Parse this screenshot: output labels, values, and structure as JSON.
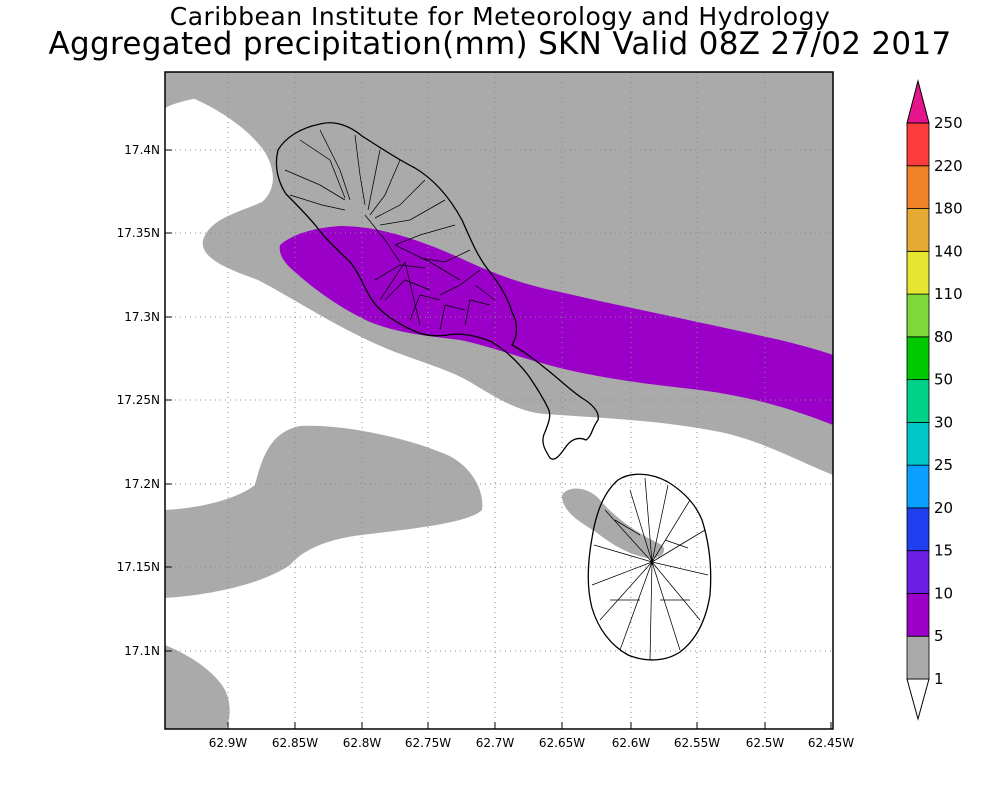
{
  "header": {
    "title_line1": "Caribbean Institute for Meteorology and Hydrology",
    "title_line2": "Aggregated precipitation(mm) SKN Valid 08Z 27/02 2017"
  },
  "map": {
    "lon_range": [
      -62.95,
      -62.45
    ],
    "lat_range": [
      17.05,
      17.45
    ],
    "y_ticks": [
      "17.4N",
      "17.35N",
      "17.3N",
      "17.25N",
      "17.2N",
      "17.15N",
      "17.1N"
    ],
    "x_ticks": [
      "62.9W",
      "62.85W",
      "62.8W",
      "62.75W",
      "62.7W",
      "62.65W",
      "62.6W",
      "62.55W",
      "62.5W",
      "62.45W"
    ],
    "grid": "dotted",
    "features": [
      "St. Kitts",
      "Nevis",
      "precipitation 1-5mm",
      "precipitation 5-10mm"
    ]
  },
  "colorbar": {
    "labels": [
      "1",
      "5",
      "10",
      "15",
      "20",
      "25",
      "30",
      "50",
      "80",
      "110",
      "140",
      "180",
      "220",
      "250"
    ],
    "colors": [
      "#ffffff",
      "#aaaaaa",
      "#9a00c8",
      "#6a1ee6",
      "#2040f0",
      "#0aa0ff",
      "#00c8c8",
      "#00d28a",
      "#00c800",
      "#7ed83a",
      "#e6e632",
      "#e6aa32",
      "#f08228",
      "#fa3c3c",
      "#e6148c"
    ]
  }
}
